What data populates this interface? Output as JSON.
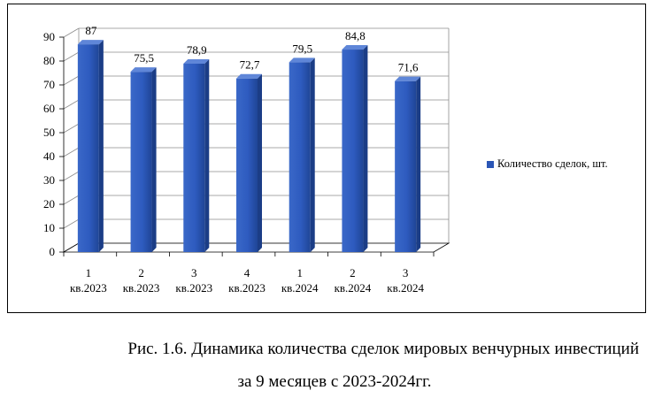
{
  "chart_data": {
    "type": "bar",
    "categories": [
      [
        "1",
        "кв.2023"
      ],
      [
        "2",
        "кв.2023"
      ],
      [
        "3",
        "кв.2023"
      ],
      [
        "4",
        "кв.2023"
      ],
      [
        "1",
        "кв.2024"
      ],
      [
        "2",
        "кв.2024"
      ],
      [
        "3",
        "кв.2024"
      ]
    ],
    "series": [
      {
        "name": "Количество сделок, шт.",
        "values": [
          87,
          75.5,
          78.9,
          72.7,
          79.5,
          84.8,
          71.6
        ]
      }
    ],
    "data_labels": [
      "87",
      "75,5",
      "78,9",
      "72,7",
      "79,5",
      "84,8",
      "71,6"
    ],
    "yticks": [
      0,
      10,
      20,
      30,
      40,
      50,
      60,
      70,
      80,
      90
    ],
    "ylim": [
      0,
      90
    ],
    "grid": true,
    "legend_position": "right",
    "bar_color": "#2b56b6"
  },
  "caption": {
    "line1": "Рис. 1.6. Динамика количества сделок мировых венчурных инвестиций",
    "line2": "за 9 месяцев с 2023-2024гг."
  }
}
